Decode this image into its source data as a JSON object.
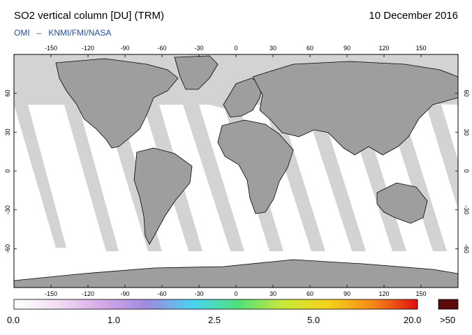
{
  "header": {
    "title": "SO2 vertical column [DU] (TRM)",
    "date": "10 December 2016",
    "credit_left": "OMI",
    "credit_sep": "–",
    "credit_right": "KNMI/FMI/NASA"
  },
  "map": {
    "projection": "equirectangular",
    "lon_ticks": [
      "-150",
      "-120",
      "-90",
      "-60",
      "-30",
      "0",
      "30",
      "60",
      "90",
      "120",
      "150"
    ],
    "lat_ticks": [
      "60",
      "30",
      "0",
      "-30",
      "-60"
    ],
    "colors": {
      "land": "#9e9e9e",
      "no_data": "#d3d3d3",
      "ocean_data": "#ffffff",
      "coast": "#000000"
    }
  },
  "colorbar": {
    "labels": [
      "0.0",
      "1.0",
      "2.5",
      "5.0",
      "20.0"
    ],
    "overflow_label": ">50",
    "overflow_color": "#5a0a0a",
    "gradient": [
      "#ffffff",
      "#f2dcf4",
      "#d4a6e6",
      "#9d8be0",
      "#48d4f0",
      "#52e07a",
      "#c8e83a",
      "#f6d21c",
      "#f58a1a",
      "#e01010"
    ]
  }
}
